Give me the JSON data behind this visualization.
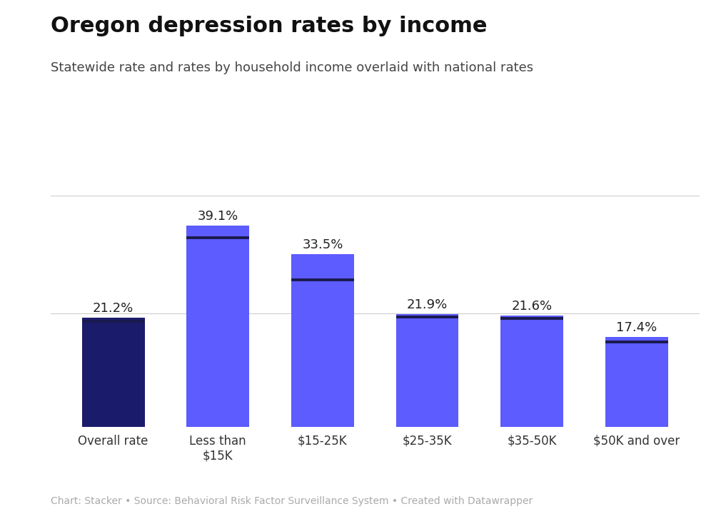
{
  "title": "Oregon depression rates by income",
  "subtitle": "Statewide rate and rates by household income overlaid with national rates",
  "footer": "Chart: Stacker • Source: Behavioral Risk Factor Surveillance System • Created with Datawrapper",
  "categories": [
    "Overall rate",
    "Less than\n$15K",
    "$15-25K",
    "$25-35K",
    "$35-50K",
    "$50K and over"
  ],
  "values": [
    21.2,
    39.1,
    33.5,
    21.9,
    21.6,
    17.4
  ],
  "bar_colors": [
    "#1b1b6b",
    "#5c5cff",
    "#5c5cff",
    "#5c5cff",
    "#5c5cff",
    "#5c5cff"
  ],
  "national_rates": [
    20.5,
    36.8,
    28.5,
    21.3,
    21.0,
    16.5
  ],
  "ylim": [
    0,
    45
  ],
  "background_color": "#ffffff",
  "title_fontsize": 22,
  "subtitle_fontsize": 13,
  "label_fontsize": 13,
  "tick_fontsize": 12,
  "footer_fontsize": 10,
  "bar_width": 0.6,
  "grid_color": "#cccccc",
  "national_line_color": "#1a1a4e",
  "value_label_color": "#222222"
}
